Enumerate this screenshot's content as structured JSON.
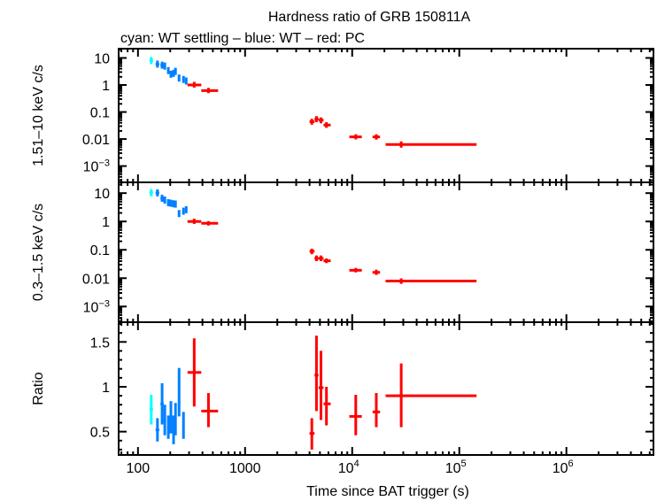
{
  "chart_data": {
    "type": "scatter",
    "title": "Hardness ratio of GRB 150811A",
    "subtitle": "cyan: WT settling – blue: WT – red: PC",
    "xlabel": "Time since BAT trigger (s)",
    "xscale": "log",
    "xlim": [
      66,
      6500000
    ],
    "x_ticks": [
      {
        "value": 100,
        "label": "100"
      },
      {
        "value": 1000,
        "label": "1000"
      },
      {
        "value": 10000,
        "label": "10",
        "exp": "4"
      },
      {
        "value": 100000,
        "label": "10",
        "exp": "5"
      },
      {
        "value": 1000000,
        "label": "10",
        "exp": "6"
      }
    ],
    "colors": {
      "wt_settling": "#00ffff",
      "wt": "#0080ff",
      "pc": "#ff0000"
    },
    "panels": [
      {
        "name": "hard",
        "ylabel": "1.51–10 keV c/s",
        "yscale": "log",
        "ylim": [
          0.00025,
          22
        ],
        "y_ticks": [
          {
            "value": 10,
            "label": "10"
          },
          {
            "value": 1,
            "label": "1"
          },
          {
            "value": 0.1,
            "label": "0.1"
          },
          {
            "value": 0.01,
            "label": "0.01"
          },
          {
            "value": 0.001,
            "label": "10",
            "exp": "−3"
          }
        ],
        "series": [
          {
            "name": "WT settling",
            "color_key": "wt_settling",
            "points": [
              {
                "x": 133,
                "y": 8.0,
                "xlo": 128,
                "xhi": 138
              }
            ]
          },
          {
            "name": "WT",
            "color_key": "wt",
            "points": [
              {
                "x": 152,
                "y": 5.9,
                "xlo": 146,
                "xhi": 158
              },
              {
                "x": 168,
                "y": 5.4,
                "xlo": 162,
                "xhi": 174
              },
              {
                "x": 178,
                "y": 5.0,
                "xlo": 173,
                "xhi": 183
              },
              {
                "x": 192,
                "y": 3.4,
                "xlo": 187,
                "xhi": 197
              },
              {
                "x": 203,
                "y": 2.5,
                "xlo": 198,
                "xhi": 208
              },
              {
                "x": 215,
                "y": 2.7,
                "xlo": 210,
                "xhi": 220
              },
              {
                "x": 224,
                "y": 3.2,
                "xlo": 219,
                "xhi": 229
              },
              {
                "x": 242,
                "y": 1.8,
                "xlo": 236,
                "xhi": 248
              },
              {
                "x": 266,
                "y": 1.6,
                "xlo": 259,
                "xhi": 273
              },
              {
                "x": 282,
                "y": 1.4,
                "xlo": 275,
                "xhi": 289
              }
            ]
          },
          {
            "name": "PC",
            "color_key": "pc",
            "points": [
              {
                "x": 335,
                "y": 1.0,
                "xlo": 290,
                "xhi": 390,
                "ylo": 0.8,
                "yhi": 1.3
              },
              {
                "x": 455,
                "y": 0.62,
                "xlo": 390,
                "xhi": 560,
                "ylo": 0.5,
                "yhi": 0.78
              },
              {
                "x": 4200,
                "y": 0.044,
                "xlo": 4000,
                "xhi": 4450,
                "ylo": 0.034,
                "yhi": 0.056
              },
              {
                "x": 4640,
                "y": 0.055,
                "xlo": 4450,
                "xhi": 4850,
                "ylo": 0.042,
                "yhi": 0.07
              },
              {
                "x": 5110,
                "y": 0.05,
                "xlo": 4850,
                "xhi": 5400,
                "ylo": 0.038,
                "yhi": 0.063
              },
              {
                "x": 5750,
                "y": 0.033,
                "xlo": 5400,
                "xhi": 6300,
                "ylo": 0.026,
                "yhi": 0.042
              },
              {
                "x": 10800,
                "y": 0.012,
                "xlo": 9400,
                "xhi": 12300,
                "ylo": 0.0097,
                "yhi": 0.015
              },
              {
                "x": 16800,
                "y": 0.012,
                "xlo": 15500,
                "xhi": 18200,
                "ylo": 0.0095,
                "yhi": 0.015
              },
              {
                "x": 28700,
                "y": 0.0063,
                "xlo": 20500,
                "xhi": 145000,
                "ylo": 0.0048,
                "yhi": 0.0082
              }
            ]
          }
        ]
      },
      {
        "name": "soft",
        "ylabel": "0.3–1.5 keV c/s",
        "yscale": "log",
        "ylim": [
          0.00028,
          24
        ],
        "y_ticks": [
          {
            "value": 10,
            "label": "10"
          },
          {
            "value": 1,
            "label": "1"
          },
          {
            "value": 0.1,
            "label": "0.1"
          },
          {
            "value": 0.01,
            "label": "0.01"
          },
          {
            "value": 0.001,
            "label": "10",
            "exp": "−3"
          }
        ],
        "series": [
          {
            "name": "WT settling",
            "color_key": "wt_settling",
            "points": [
              {
                "x": 133,
                "y": 10.4,
                "xlo": 128,
                "xhi": 138
              }
            ]
          },
          {
            "name": "WT",
            "color_key": "wt",
            "points": [
              {
                "x": 152,
                "y": 10.2,
                "xlo": 146,
                "xhi": 158
              },
              {
                "x": 168,
                "y": 6.6,
                "xlo": 162,
                "xhi": 174
              },
              {
                "x": 178,
                "y": 5.7,
                "xlo": 173,
                "xhi": 183
              },
              {
                "x": 192,
                "y": 4.6,
                "xlo": 187,
                "xhi": 197
              },
              {
                "x": 203,
                "y": 4.4,
                "xlo": 198,
                "xhi": 208
              },
              {
                "x": 215,
                "y": 4.2,
                "xlo": 210,
                "xhi": 220
              },
              {
                "x": 224,
                "y": 4.1,
                "xlo": 219,
                "xhi": 229
              },
              {
                "x": 242,
                "y": 1.9,
                "xlo": 236,
                "xhi": 248
              },
              {
                "x": 266,
                "y": 2.3,
                "xlo": 259,
                "xhi": 273
              },
              {
                "x": 282,
                "y": 2.6,
                "xlo": 275,
                "xhi": 289
              }
            ]
          },
          {
            "name": "PC",
            "color_key": "pc",
            "points": [
              {
                "x": 335,
                "y": 1.0,
                "xlo": 290,
                "xhi": 390,
                "ylo": 0.82,
                "yhi": 1.25
              },
              {
                "x": 455,
                "y": 0.86,
                "xlo": 390,
                "xhi": 560,
                "ylo": 0.72,
                "yhi": 1.03
              },
              {
                "x": 4200,
                "y": 0.089,
                "xlo": 4000,
                "xhi": 4450,
                "ylo": 0.07,
                "yhi": 0.11
              },
              {
                "x": 4640,
                "y": 0.05,
                "xlo": 4450,
                "xhi": 4850,
                "ylo": 0.04,
                "yhi": 0.063
              },
              {
                "x": 5110,
                "y": 0.05,
                "xlo": 4850,
                "xhi": 5400,
                "ylo": 0.04,
                "yhi": 0.063
              },
              {
                "x": 5750,
                "y": 0.041,
                "xlo": 5400,
                "xhi": 6300,
                "ylo": 0.034,
                "yhi": 0.05
              },
              {
                "x": 10800,
                "y": 0.019,
                "xlo": 9400,
                "xhi": 12300,
                "ylo": 0.016,
                "yhi": 0.023
              },
              {
                "x": 16800,
                "y": 0.016,
                "xlo": 15500,
                "xhi": 18200,
                "ylo": 0.013,
                "yhi": 0.02
              },
              {
                "x": 28700,
                "y": 0.0079,
                "xlo": 20500,
                "xhi": 145000,
                "ylo": 0.0063,
                "yhi": 0.0098
              }
            ]
          }
        ]
      },
      {
        "name": "ratio",
        "ylabel": "Ratio",
        "yscale": "linear",
        "ylim": [
          0.24,
          1.72
        ],
        "y_ticks": [
          {
            "value": 1.5,
            "label": "1.5"
          },
          {
            "value": 1,
            "label": "1"
          },
          {
            "value": 0.5,
            "label": "0.5"
          }
        ],
        "series": [
          {
            "name": "WT settling",
            "color_key": "wt_settling",
            "points": [
              {
                "x": 133,
                "y": 0.75,
                "xlo": 128,
                "xhi": 138,
                "ylo": 0.58,
                "yhi": 0.91
              }
            ]
          },
          {
            "name": "WT",
            "color_key": "wt",
            "points": [
              {
                "x": 152,
                "y": 0.52,
                "xlo": 146,
                "xhi": 158,
                "ylo": 0.39,
                "yhi": 0.65
              },
              {
                "x": 168,
                "y": 0.81,
                "xlo": 162,
                "xhi": 174,
                "ylo": 0.58,
                "yhi": 1.04
              },
              {
                "x": 178,
                "y": 0.62,
                "xlo": 173,
                "xhi": 183,
                "ylo": 0.46,
                "yhi": 0.8
              },
              {
                "x": 192,
                "y": 0.55,
                "xlo": 187,
                "xhi": 197,
                "ylo": 0.42,
                "yhi": 0.68
              },
              {
                "x": 203,
                "y": 0.66,
                "xlo": 198,
                "xhi": 208,
                "ylo": 0.48,
                "yhi": 0.84
              },
              {
                "x": 215,
                "y": 0.52,
                "xlo": 210,
                "xhi": 220,
                "ylo": 0.36,
                "yhi": 0.68
              },
              {
                "x": 224,
                "y": 0.64,
                "xlo": 219,
                "xhi": 229,
                "ylo": 0.46,
                "yhi": 0.82
              },
              {
                "x": 242,
                "y": 0.94,
                "xlo": 236,
                "xhi": 248,
                "ylo": 0.67,
                "yhi": 1.21
              },
              {
                "x": 266,
                "y": 0.56,
                "xlo": 259,
                "xhi": 273,
                "ylo": 0.42,
                "yhi": 0.72
              }
            ]
          },
          {
            "name": "PC",
            "color_key": "pc",
            "points": [
              {
                "x": 335,
                "y": 1.16,
                "xlo": 290,
                "xhi": 390,
                "ylo": 0.78,
                "yhi": 1.54
              },
              {
                "x": 455,
                "y": 0.73,
                "xlo": 390,
                "xhi": 560,
                "ylo": 0.55,
                "yhi": 0.93
              },
              {
                "x": 4200,
                "y": 0.48,
                "xlo": 4000,
                "xhi": 4450,
                "ylo": 0.3,
                "yhi": 0.65
              },
              {
                "x": 4640,
                "y": 1.13,
                "xlo": 4450,
                "xhi": 4850,
                "ylo": 0.73,
                "yhi": 1.57
              },
              {
                "x": 5110,
                "y": 0.99,
                "xlo": 4850,
                "xhi": 5400,
                "ylo": 0.63,
                "yhi": 1.4
              },
              {
                "x": 5750,
                "y": 0.81,
                "xlo": 5400,
                "xhi": 6300,
                "ylo": 0.57,
                "yhi": 1.0
              },
              {
                "x": 10800,
                "y": 0.67,
                "xlo": 9400,
                "xhi": 12300,
                "ylo": 0.46,
                "yhi": 0.91
              },
              {
                "x": 16800,
                "y": 0.72,
                "xlo": 15500,
                "xhi": 18200,
                "ylo": 0.55,
                "yhi": 0.93
              },
              {
                "x": 28700,
                "y": 0.9,
                "xlo": 20500,
                "xhi": 145000,
                "ylo": 0.55,
                "yhi": 1.26
              }
            ]
          }
        ]
      }
    ]
  }
}
